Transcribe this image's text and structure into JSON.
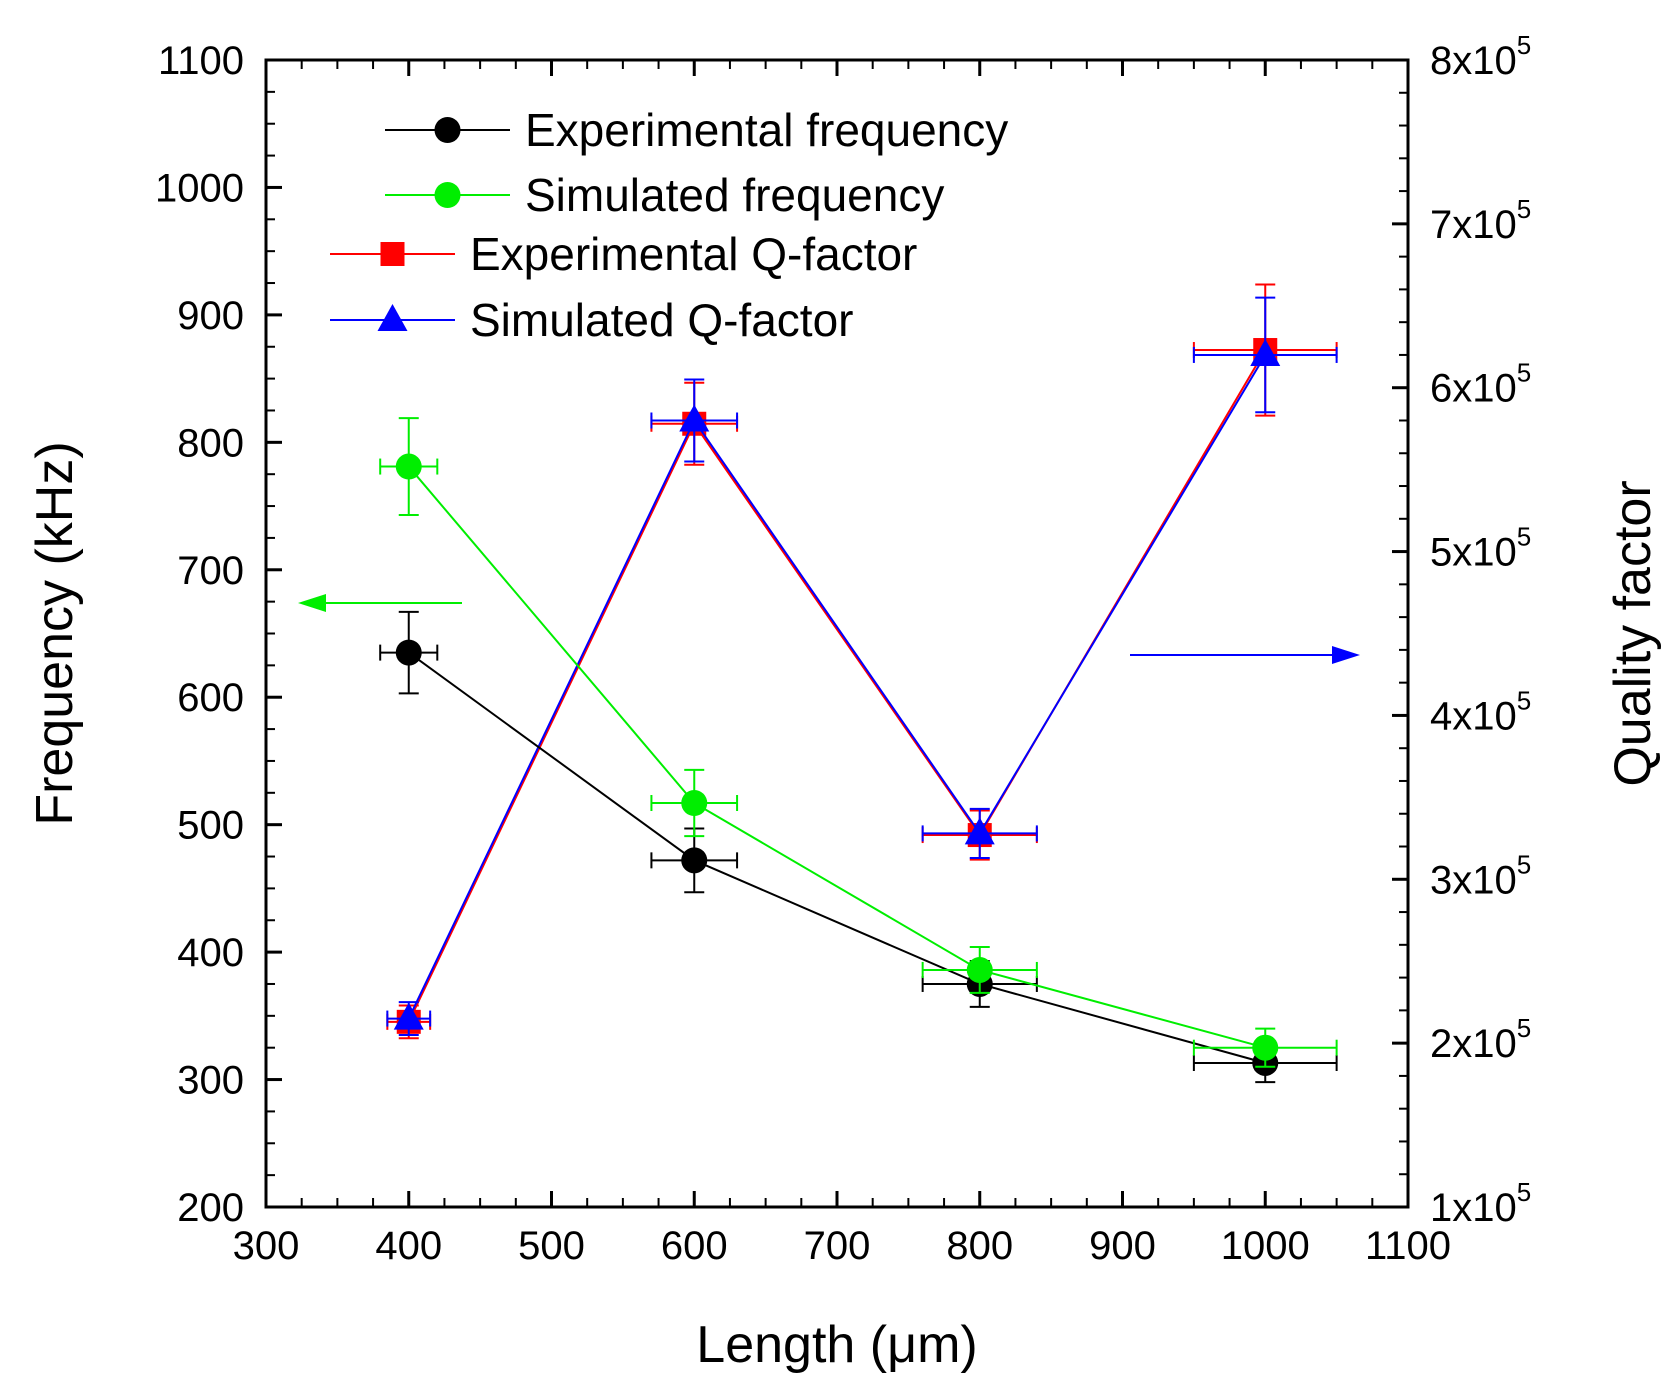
{
  "chart_data": {
    "type": "line",
    "xlabel": "Length (μm)",
    "ylabel_left": "Frequency (kHz)",
    "ylabel_right": "Quality factor",
    "xlim": [
      300,
      1100
    ],
    "ylim_left": [
      200,
      1100
    ],
    "ylim_right": [
      100000,
      800000
    ],
    "x_ticks": [
      "300",
      "400",
      "500",
      "600",
      "700",
      "800",
      "900",
      "1000",
      "1100"
    ],
    "y_left_ticks": [
      "200",
      "300",
      "400",
      "500",
      "600",
      "700",
      "800",
      "900",
      "1000",
      "1100"
    ],
    "y_right_ticks": [
      {
        "mantissa": "1x10",
        "exp": "5"
      },
      {
        "mantissa": "2x10",
        "exp": "5"
      },
      {
        "mantissa": "3x10",
        "exp": "5"
      },
      {
        "mantissa": "4x10",
        "exp": "5"
      },
      {
        "mantissa": "5x10",
        "exp": "5"
      },
      {
        "mantissa": "6x10",
        "exp": "5"
      },
      {
        "mantissa": "7x10",
        "exp": "5"
      },
      {
        "mantissa": "8x10",
        "exp": "5"
      }
    ],
    "legend_position": "top-left",
    "series": [
      {
        "name": "Experimental frequency",
        "axis": "left",
        "color": "#000000",
        "marker": "circle",
        "x": [
          400,
          600,
          800,
          1000
        ],
        "y": [
          635,
          472,
          375,
          313
        ],
        "xerr": [
          20,
          30,
          40,
          50
        ],
        "yerr": [
          32,
          25,
          18,
          15
        ]
      },
      {
        "name": "Simulated frequency",
        "axis": "left",
        "color": "#00ee00",
        "marker": "circle",
        "x": [
          400,
          600,
          800,
          1000
        ],
        "y": [
          781,
          517,
          386,
          325
        ],
        "xerr": [
          20,
          30,
          40,
          50
        ],
        "yerr": [
          38,
          26,
          18,
          15
        ]
      },
      {
        "name": "Experimental Q-factor",
        "axis": "right",
        "color": "#ff0000",
        "marker": "square",
        "x": [
          400,
          600,
          800,
          1000
        ],
        "y": [
          213000,
          578000,
          327000,
          623000
        ],
        "xerr": [
          15,
          30,
          40,
          50
        ],
        "yerr": [
          10000,
          25000,
          15000,
          40000
        ]
      },
      {
        "name": "Simulated Q-factor",
        "axis": "right",
        "color": "#0000ff",
        "marker": "triangle",
        "x": [
          400,
          600,
          800,
          1000
        ],
        "y": [
          215000,
          580000,
          328000,
          620000
        ],
        "xerr": [
          15,
          30,
          40,
          50
        ],
        "yerr": [
          10000,
          25000,
          15000,
          35000
        ]
      }
    ],
    "annotations": [
      {
        "type": "arrow",
        "direction": "left",
        "color": "#00ee00",
        "meaning": "simulated/experimental frequency on left axis"
      },
      {
        "type": "arrow",
        "direction": "right",
        "color": "#0000ff",
        "meaning": "Q-factor on right axis"
      }
    ]
  }
}
